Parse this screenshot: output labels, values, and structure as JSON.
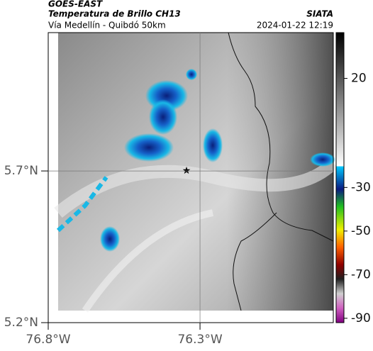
{
  "header": {
    "satellite": "GOES-EAST",
    "product": "Temperatura de Brillo CH13",
    "source": "SIATA",
    "region": "Vía Medellín - Quibdó 50km",
    "timestamp": "2024-01-22 12:19"
  },
  "map": {
    "xlim": [
      -76.8,
      -75.861
    ],
    "ylim": [
      5.2,
      6.156
    ],
    "xticks": [
      {
        "value": -76.8,
        "label": "76.8°W"
      },
      {
        "value": -76.3,
        "label": "76.3°W"
      }
    ],
    "yticks": [
      {
        "value": 5.7,
        "label": "5.7°N"
      },
      {
        "value": 5.2,
        "label": "5.2°N"
      }
    ],
    "grid": true
  },
  "colorbar": {
    "ylim": [
      -92,
      41
    ],
    "yticks": [
      20,
      -30,
      -50,
      -70,
      -90
    ]
  }
}
